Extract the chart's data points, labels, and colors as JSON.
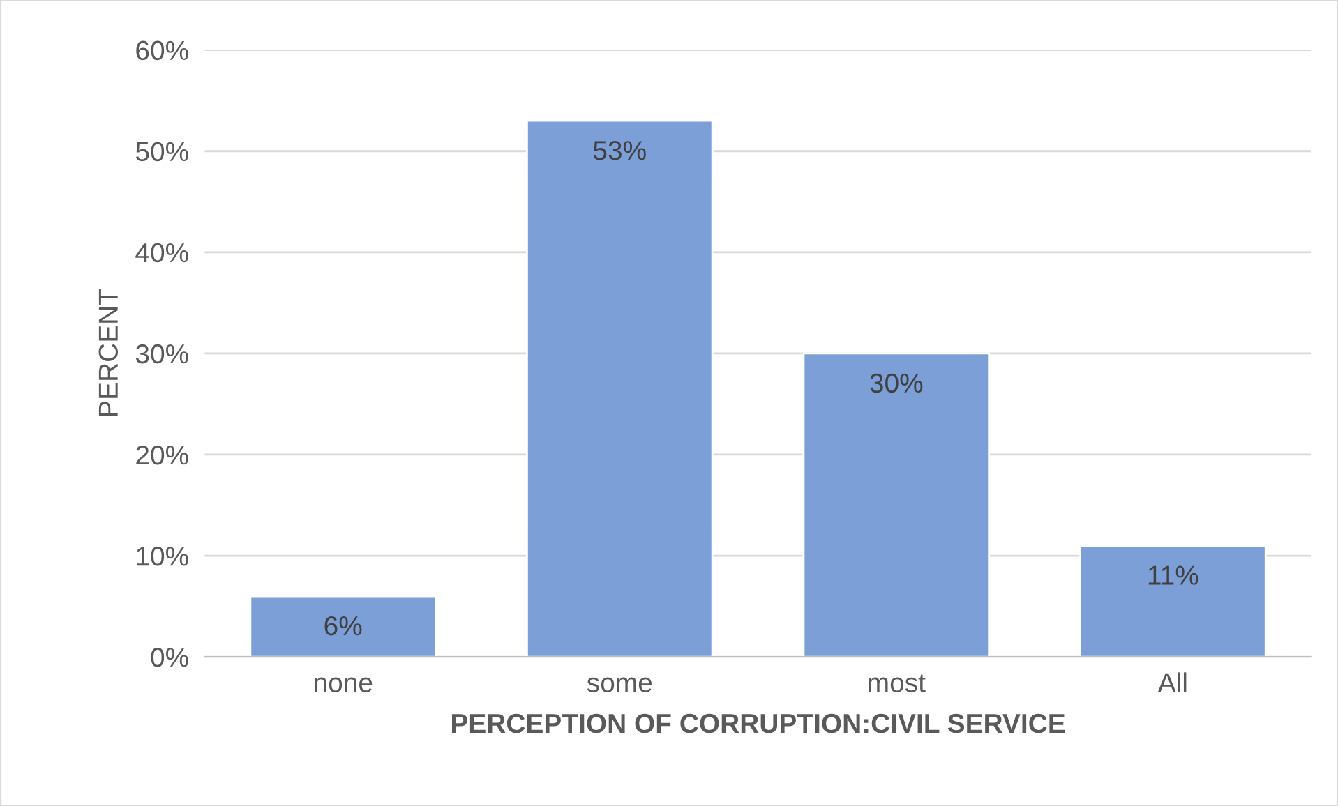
{
  "chart_data": {
    "type": "bar",
    "xlabel": "PERCEPTION OF CORRUPTION:CIVIL SERVICE",
    "ylabel": "PERCENT",
    "categories": [
      "none",
      "some",
      "most",
      "All"
    ],
    "values": [
      6,
      53,
      30,
      11
    ],
    "value_labels": [
      "6%",
      "53%",
      "30%",
      "11%"
    ],
    "color": "#7b9fd6",
    "ylim": [
      0,
      60
    ],
    "yticks": [
      {
        "value": 0,
        "label": "0%"
      },
      {
        "value": 10,
        "label": "10%"
      },
      {
        "value": 20,
        "label": "20%"
      },
      {
        "value": 30,
        "label": "30%"
      },
      {
        "value": 40,
        "label": "40%"
      },
      {
        "value": 50,
        "label": "50%"
      },
      {
        "value": 60,
        "label": "60%"
      }
    ],
    "grid": "y",
    "legend": false
  }
}
